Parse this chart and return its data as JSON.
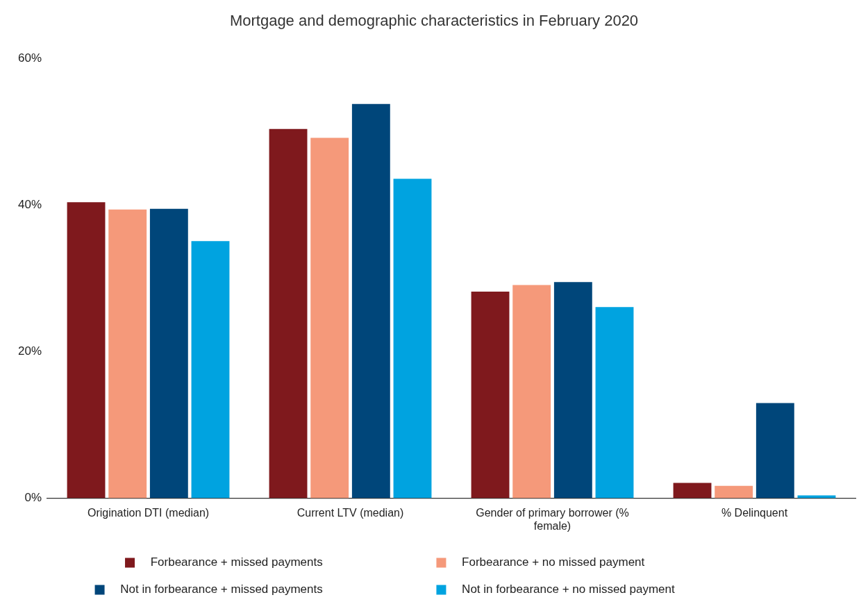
{
  "chart_data": {
    "type": "bar",
    "title": "Mortgage and demographic characteristics in February 2020",
    "categories": [
      "Origination DTI (median)",
      "Current LTV (median)",
      "Gender of primary borrower (% female)",
      "% Delinquent"
    ],
    "series": [
      {
        "name": "Forbearance + missed payments",
        "color": "#7f191d",
        "values": [
          40.4,
          50.4,
          28.2,
          2.1
        ]
      },
      {
        "name": "Forbearance + no missed payment",
        "color": "#f5997a",
        "values": [
          39.4,
          49.2,
          29.1,
          1.7
        ]
      },
      {
        "name": "Not in forbearance + missed payments",
        "color": "#00467a",
        "values": [
          39.5,
          53.8,
          29.5,
          13.0
        ]
      },
      {
        "name": "Not in forbearance + no missed payment",
        "color": "#00a3e0",
        "values": [
          35.1,
          43.6,
          26.1,
          0.4
        ]
      }
    ],
    "ylim": [
      0,
      60
    ],
    "yticks": [
      {
        "value": 0,
        "label": "0%"
      },
      {
        "value": 20,
        "label": "20%"
      },
      {
        "value": 40,
        "label": "40%"
      },
      {
        "value": 60,
        "label": "60%"
      }
    ],
    "grid": false,
    "legend": "bottom"
  }
}
